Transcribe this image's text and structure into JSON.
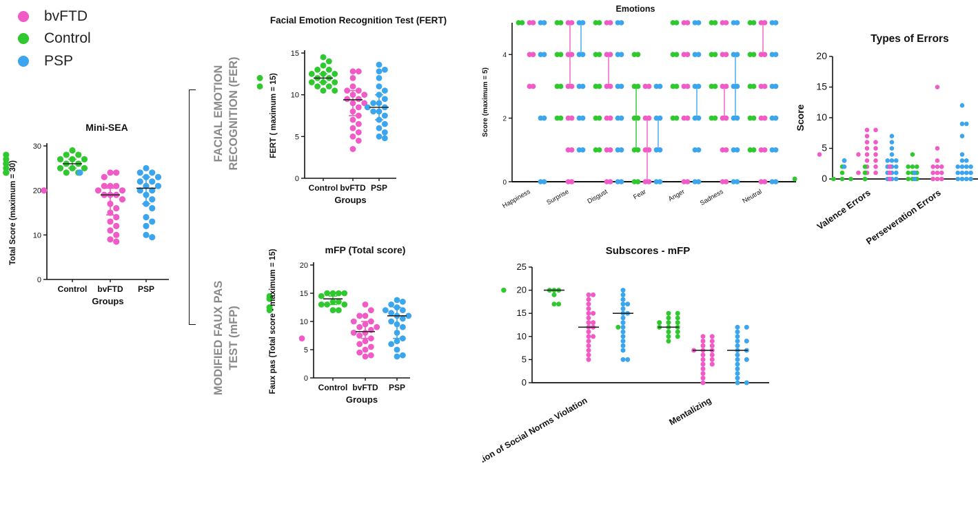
{
  "colors": {
    "bvFTD": "#f05bc6",
    "Control": "#2fc82f",
    "PSP": "#3ba5ee"
  },
  "legend": [
    {
      "key": "bvFTD",
      "label": "bvFTD"
    },
    {
      "key": "Control",
      "label": "Control"
    },
    {
      "key": "PSP",
      "label": "PSP"
    }
  ],
  "side_labels": {
    "fer": [
      "FACIAL EMOTION",
      "RECOGNITION (FER)"
    ],
    "mfp": [
      "MODIFIED FAUX PAS",
      "TEST (mFP)"
    ]
  },
  "chart_data": [
    {
      "id": "minisea",
      "type": "scatter",
      "title": "Mini-SEA",
      "xlabel": "Groups",
      "ylabel": "Total Score (maximum = 30)",
      "ylim": [
        0,
        30
      ],
      "yticks": [
        0,
        10,
        20,
        30
      ],
      "categories": [
        "Control",
        "bvFTD",
        "PSP"
      ],
      "series": [
        {
          "key": "Control",
          "median": 26,
          "iqr": [
            25,
            27
          ],
          "values": [
            29,
            28,
            28,
            28,
            27,
            27,
            27,
            27,
            26,
            26,
            26,
            26,
            25,
            25,
            25,
            25,
            24,
            24,
            24,
            24,
            24,
            24
          ]
        },
        {
          "key": "bvFTD",
          "median": 19,
          "iqr": [
            14.5,
            20.5
          ],
          "values": [
            24,
            24,
            23,
            21,
            21,
            21,
            20,
            20,
            20,
            19,
            19,
            19,
            18,
            17,
            16,
            15,
            14,
            13,
            12,
            11,
            10,
            9,
            8.5
          ]
        },
        {
          "key": "PSP",
          "median": 20.5,
          "iqr": [
            17,
            23
          ],
          "values": [
            25,
            24,
            24,
            24,
            24,
            23,
            23,
            22,
            22,
            21,
            21,
            20,
            20,
            19,
            18,
            17,
            16,
            14,
            13,
            12,
            10,
            9.5
          ]
        }
      ]
    },
    {
      "id": "fert",
      "type": "scatter",
      "title": "Facial  Emotion  Recognition Test (FERT)",
      "xlabel": "Groups",
      "ylabel": "FERT ( maximum = 15)",
      "ylim": [
        0,
        15
      ],
      "yticks": [
        0,
        5,
        10,
        15
      ],
      "categories": [
        "Control",
        "bvFTD",
        "PSP"
      ],
      "series": [
        {
          "key": "Control",
          "median": 12,
          "iqr": [
            11.5,
            12.5
          ],
          "values": [
            14.5,
            14,
            13.5,
            13,
            13,
            12.5,
            12.5,
            12.5,
            12,
            12,
            12,
            12,
            11.5,
            11.5,
            11.5,
            11,
            11,
            11,
            10.5,
            10.5
          ]
        },
        {
          "key": "bvFTD",
          "median": 9.4,
          "iqr": [
            7.5,
            10.5
          ],
          "values": [
            12.8,
            12.8,
            12,
            11,
            10.5,
            10.5,
            10,
            10,
            9.5,
            9.5,
            9,
            9,
            8.5,
            8,
            7.5,
            7,
            6.5,
            6,
            5.5,
            5,
            4.5,
            3.5
          ]
        },
        {
          "key": "PSP",
          "median": 8.5,
          "iqr": [
            7,
            10
          ],
          "values": [
            13.6,
            13,
            12.8,
            12,
            11,
            10.5,
            10,
            9.5,
            9,
            9,
            8.5,
            8.5,
            8,
            8,
            7.5,
            7,
            6.5,
            6,
            5.5,
            5,
            4.8
          ]
        }
      ]
    },
    {
      "id": "mfp",
      "type": "scatter",
      "title": "mFP (Total score)",
      "xlabel": "Groups",
      "ylabel": "Faux pas (Total score - maximum = 15)",
      "ylim": [
        0,
        20
      ],
      "yticks": [
        0,
        5,
        10,
        15,
        20
      ],
      "categories": [
        "Control",
        "bvFTD",
        "PSP"
      ],
      "series": [
        {
          "key": "Control",
          "median": 14,
          "iqr": [
            13,
            14.5
          ],
          "values": [
            15,
            15,
            15,
            15,
            14.5,
            14.5,
            14,
            14,
            14,
            14,
            13.5,
            13.5,
            13,
            13,
            13,
            12.5,
            12.5,
            12,
            12,
            12
          ]
        },
        {
          "key": "bvFTD",
          "median": 8.2,
          "iqr": [
            7,
            10
          ],
          "values": [
            13,
            12,
            11,
            11,
            10,
            10,
            9.5,
            9,
            9,
            8.5,
            8,
            8,
            7.5,
            7,
            7,
            6.5,
            6,
            5.5,
            5,
            4.5,
            4,
            3.8
          ]
        },
        {
          "key": "PSP",
          "median": 11,
          "iqr": [
            7,
            12.5
          ],
          "values": [
            13.8,
            13.5,
            13,
            12.5,
            12,
            12,
            11.5,
            11,
            11,
            10.5,
            10,
            9.5,
            9,
            8,
            7,
            6.5,
            6,
            5,
            4,
            3.8
          ]
        }
      ]
    },
    {
      "id": "emotions",
      "type": "scatter",
      "title": "Emotions",
      "xlabel": "",
      "ylabel": "Score (maximum = 5)",
      "ylim": [
        0,
        5
      ],
      "yticks": [
        0,
        2,
        4
      ],
      "categories": [
        "Happiness",
        "Surprise",
        "Disgust",
        "Fear",
        "Anger",
        "Sadness",
        "Neutral"
      ],
      "series": [
        {
          "key": "Control",
          "points": [
            [
              5
            ],
            [
              5,
              4,
              3,
              2
            ],
            [
              5,
              4,
              3,
              2,
              1
            ],
            [
              4,
              3,
              2,
              1,
              0
            ],
            [
              5,
              4,
              3,
              2
            ],
            [
              5,
              4,
              3,
              2
            ],
            [
              5,
              4,
              3,
              2,
              1
            ]
          ],
          "ranges": [
            null,
            null,
            null,
            [
              1,
              3
            ],
            null,
            null,
            null
          ]
        },
        {
          "key": "bvFTD",
          "points": [
            [
              5,
              4,
              3
            ],
            [
              5,
              4,
              3,
              2,
              1,
              0
            ],
            [
              5,
              4,
              3,
              2,
              1,
              0
            ],
            [
              3,
              2,
              1,
              0
            ],
            [
              5,
              4,
              3,
              2,
              0
            ],
            [
              5,
              4,
              3,
              2,
              1,
              0
            ],
            [
              5,
              4,
              3,
              2,
              1,
              0
            ]
          ],
          "ranges": [
            null,
            [
              3,
              5
            ],
            [
              3,
              4
            ],
            [
              0,
              2
            ],
            null,
            [
              2,
              3
            ],
            [
              4,
              5
            ]
          ]
        },
        {
          "key": "PSP",
          "points": [
            [
              5,
              4,
              2,
              0
            ],
            [
              5,
              4,
              3,
              2,
              1
            ],
            [
              5,
              4,
              3,
              2,
              1,
              0
            ],
            [
              3,
              2,
              1,
              0
            ],
            [
              5,
              4,
              3,
              2,
              1,
              0
            ],
            [
              5,
              4,
              3,
              2,
              1,
              0
            ],
            [
              5,
              4,
              3,
              2,
              1,
              0
            ]
          ],
          "ranges": [
            null,
            [
              4,
              5
            ],
            null,
            [
              1,
              2
            ],
            [
              2,
              3
            ],
            [
              2,
              4
            ],
            null
          ]
        }
      ]
    },
    {
      "id": "errors",
      "type": "scatter",
      "title": "Types of Errors",
      "xlabel": "",
      "ylabel": "Score",
      "ylim": [
        0,
        20
      ],
      "yticks": [
        0,
        5,
        10,
        15,
        20
      ],
      "categories": [
        "Valence Errors",
        "Perseveration Errors"
      ],
      "series": [
        {
          "key": "Control",
          "values": [
            [
              2,
              1,
              0,
              0,
              0,
              0,
              0,
              0,
              0,
              0,
              0,
              0
            ],
            [
              4,
              2,
              2,
              2,
              2,
              1,
              1,
              1,
              1,
              1,
              0,
              0,
              0,
              0,
              0,
              0
            ]
          ]
        },
        {
          "key": "bvFTD",
          "values": [
            [
              8,
              8,
              7,
              6,
              6,
              5,
              5,
              4,
              4,
              4,
              4,
              3,
              3,
              2,
              2,
              1,
              1,
              1
            ],
            [
              15,
              5,
              3,
              2,
              2,
              2,
              2,
              2,
              1,
              1,
              1,
              1,
              1,
              0,
              0,
              0,
              0,
              0
            ]
          ]
        },
        {
          "key": "PSP",
          "values": [
            [
              7,
              6,
              5,
              4,
              3,
              3,
              3,
              3,
              3,
              3,
              2,
              2,
              2,
              2,
              1,
              1,
              1,
              0,
              0,
              0
            ],
            [
              12,
              9,
              9,
              7,
              4,
              3,
              3,
              2,
              2,
              2,
              2,
              1,
              1,
              1,
              1,
              1,
              1,
              0,
              0,
              0,
              0,
              0
            ]
          ]
        }
      ]
    },
    {
      "id": "subscores",
      "type": "scatter",
      "title": "Subscores - mFP",
      "xlabel": "",
      "ylabel": "",
      "ylim": [
        0,
        25
      ],
      "yticks": [
        0,
        5,
        10,
        15,
        20,
        25
      ],
      "categories": [
        "Recognition of Social Norms Violation",
        "Mentalizing"
      ],
      "series": [
        {
          "key": "Control",
          "medians": [
            20,
            12
          ],
          "values": [
            [
              20,
              20,
              20,
              20,
              20,
              20,
              20,
              20,
              20,
              20,
              20,
              19,
              17,
              17
            ],
            [
              15,
              15,
              14,
              14,
              13,
              13,
              13,
              12,
              12,
              12,
              12,
              11,
              11,
              10,
              10,
              9
            ]
          ]
        },
        {
          "key": "bvFTD",
          "medians": [
            12,
            7
          ],
          "values": [
            [
              19,
              19,
              18,
              17,
              16,
              15,
              15,
              14,
              13,
              13,
              12,
              12,
              11,
              10,
              10,
              9,
              8,
              7,
              6,
              5
            ],
            [
              10,
              10,
              9,
              9,
              8,
              8,
              7,
              7,
              7,
              6,
              6,
              5,
              5,
              4,
              4,
              3,
              2,
              1,
              0
            ]
          ]
        },
        {
          "key": "PSP",
          "medians": [
            15,
            7
          ],
          "values": [
            [
              20,
              19,
              18,
              17,
              17,
              16,
              15,
              15,
              14,
              13,
              12,
              11,
              10,
              9,
              8,
              7,
              5,
              5
            ],
            [
              12,
              12,
              11,
              10,
              9,
              9,
              8,
              7,
              7,
              6,
              5,
              5,
              4,
              3,
              2,
              1,
              0,
              0
            ]
          ]
        }
      ]
    }
  ]
}
